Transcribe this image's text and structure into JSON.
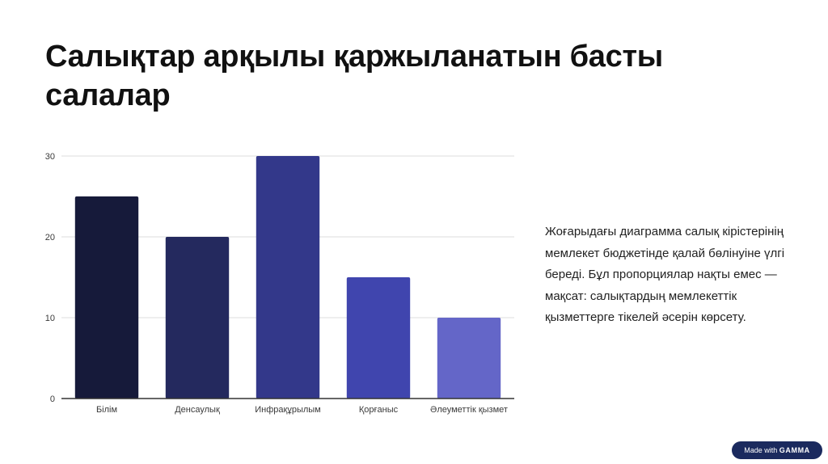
{
  "slide": {
    "title": "Салықтар арқылы қаржыланатын басты салалар",
    "description": "Жоғарыдағы диаграмма салық кірістерінің мемлекет бюджетінде қалай бөлінуіне үлгі береді. Бұл пропорциялар нақты емес — мақсат: салықтардың мемлекеттік қызметтерге тікелей әсерін көрсету.",
    "badge": {
      "prefix": "Made with",
      "brand": "GAMMA"
    }
  },
  "chart_data": {
    "type": "bar",
    "categories": [
      "Білім",
      "Денсаулық",
      "Инфрақұрылым",
      "Қорғаныс",
      "Әлеуметтік қызмет"
    ],
    "values": [
      25,
      20,
      30,
      15,
      10
    ],
    "colors": [
      "#161a3a",
      "#24295e",
      "#33388a",
      "#4045ae",
      "#6466c8"
    ],
    "yticks": [
      0,
      10,
      20,
      30
    ],
    "ylim": [
      0,
      30
    ],
    "grid": true,
    "title": "",
    "xlabel": "",
    "ylabel": ""
  }
}
